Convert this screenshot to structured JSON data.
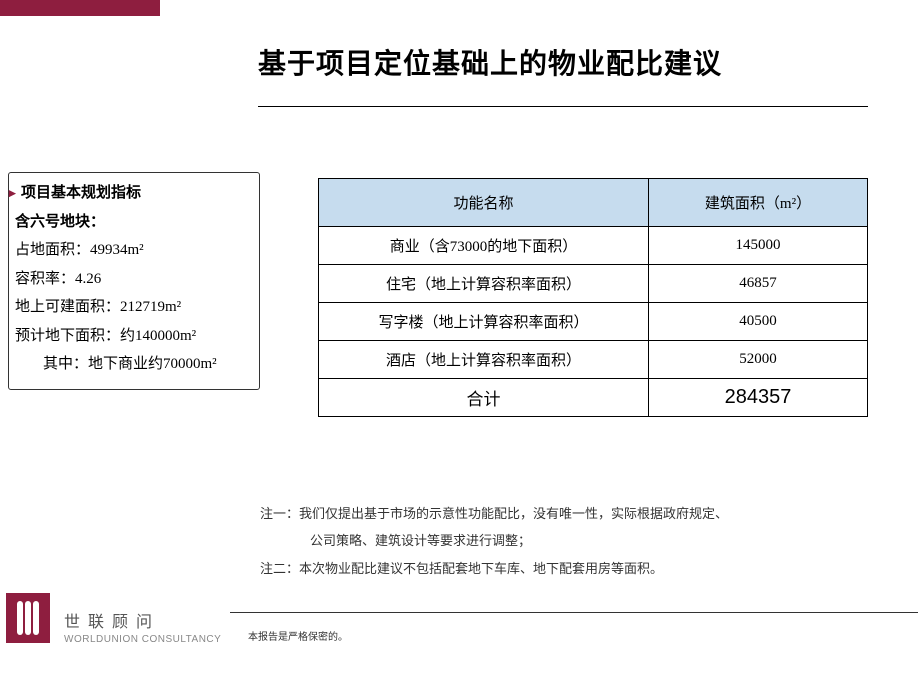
{
  "colors": {
    "accent": "#8e1e3f",
    "table_header_bg": "#c6dcee",
    "border": "#000000",
    "text": "#000000",
    "background": "#ffffff"
  },
  "title": "基于项目定位基础上的物业配比建议",
  "info_box": {
    "heading": "项目基本规划指标",
    "subheading": "含六号地块：",
    "lines": [
      "占地面积：49934m²",
      "容积率：4.26",
      "地上可建面积：212719m²",
      "预计地下面积：约140000m²"
    ],
    "indent_line": "其中：地下商业约70000m²"
  },
  "table": {
    "headers": [
      "功能名称",
      "建筑面积（m²）"
    ],
    "rows": [
      {
        "name": "商业（含73000的地下面积）",
        "area": "145000"
      },
      {
        "name": "住宅（地上计算容积率面积）",
        "area": "46857"
      },
      {
        "name": "写字楼（地上计算容积率面积）",
        "area": "40500"
      },
      {
        "name": "酒店（地上计算容积率面积）",
        "area": "52000"
      }
    ],
    "total": {
      "name": "合计",
      "area": "284357"
    }
  },
  "notes": {
    "n1a": "注一：我们仅提出基于市场的示意性功能配比，没有唯一性，实际根据政府规定、",
    "n1b": "公司策略、建筑设计等要求进行调整；",
    "n2": "注二：本次物业配比建议不包括配套地下车库、地下配套用房等面积。"
  },
  "footer": {
    "confidential": "本报告是严格保密的。",
    "logo_cn": "世联顾问",
    "logo_en": "WORLDUNION CONSULTANCY"
  }
}
